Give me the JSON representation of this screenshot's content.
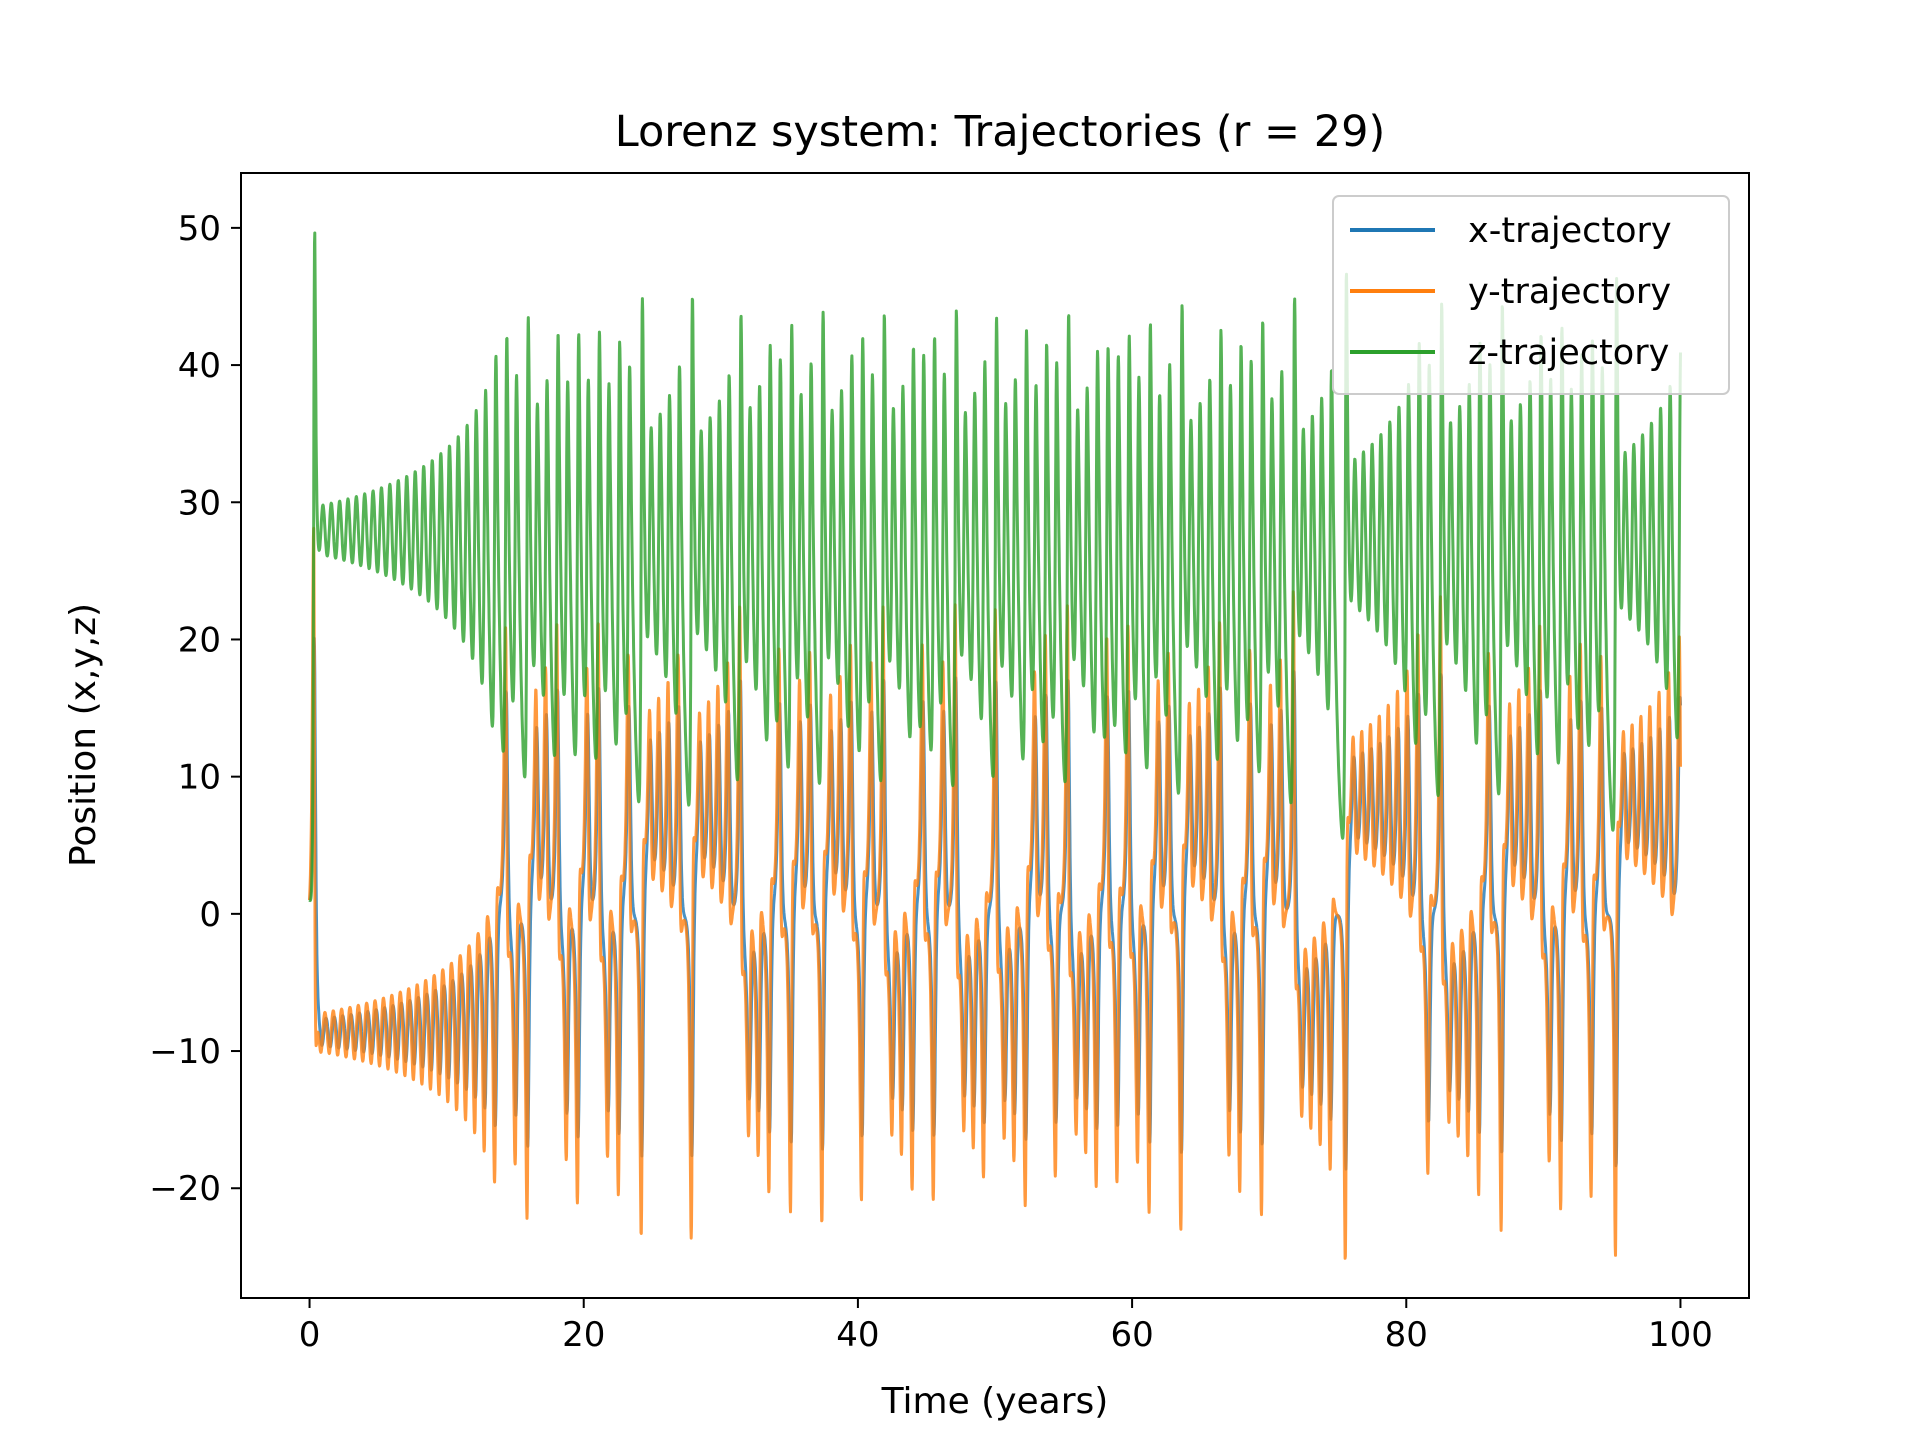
{
  "chart_data": {
    "type": "line",
    "title": "Lorenz system: Trajectories (r = 29)",
    "xlabel": "Time (years)",
    "ylabel": "Position (x,y,z)",
    "xlim": [
      -5,
      105
    ],
    "ylim": [
      -28,
      54
    ],
    "xticks": [
      0,
      20,
      40,
      60,
      80,
      100
    ],
    "xtick_labels": [
      "0",
      "20",
      "40",
      "60",
      "80",
      "100"
    ],
    "yticks": [
      -20,
      -10,
      0,
      10,
      20,
      30,
      40,
      50
    ],
    "ytick_labels": [
      "−20",
      "−10",
      "0",
      "10",
      "20",
      "30",
      "40",
      "50"
    ],
    "grid": false,
    "legend_position": "top-right",
    "series": [
      {
        "name": "x-trajectory",
        "color": "#1f77b4"
      },
      {
        "name": "y-trajectory",
        "color": "#ff7f0e"
      },
      {
        "name": "z-trajectory",
        "color": "#2ca02c"
      }
    ],
    "samples": {
      "t": [
        0,
        0.3,
        0.5,
        0.8,
        2,
        6,
        10,
        12.5,
        14,
        16,
        20,
        24.2,
        25,
        29,
        33,
        40,
        45,
        50,
        53.8,
        54.5,
        58,
        63.2,
        64,
        68,
        70,
        75,
        80,
        86,
        90,
        95,
        97,
        100
      ],
      "x": [
        1,
        20,
        -8,
        -8.5,
        -8,
        -7.5,
        -6,
        2,
        10,
        8,
        9,
        3,
        -4,
        8,
        9,
        10,
        11,
        8,
        6,
        3,
        8,
        3,
        -3,
        8,
        10,
        9,
        11,
        10,
        12,
        9,
        8,
        8
      ],
      "y": [
        1,
        28,
        -9,
        -9.5,
        -9,
        -8,
        -6,
        0,
        11,
        12,
        14,
        5,
        -4,
        14,
        15,
        15,
        16,
        14,
        7,
        5,
        15,
        5,
        -4,
        14,
        16,
        15,
        15,
        14,
        16,
        14,
        12,
        8
      ],
      "z": [
        1,
        49.5,
        28,
        27,
        28,
        29,
        31,
        38,
        40,
        42,
        43,
        45,
        25,
        40,
        43,
        42,
        43,
        41,
        45,
        30,
        43,
        45,
        25,
        41,
        45,
        44,
        45,
        43,
        45,
        43,
        42,
        33
      ]
    },
    "notes": "Chaotic oscillating trajectories; x and y overlap closely oscillating roughly between -24 and 17, z oscillates roughly between 6 and 46 with an initial spike near 49.5 at t=0.3. samples give approximate envelope peak values."
  }
}
